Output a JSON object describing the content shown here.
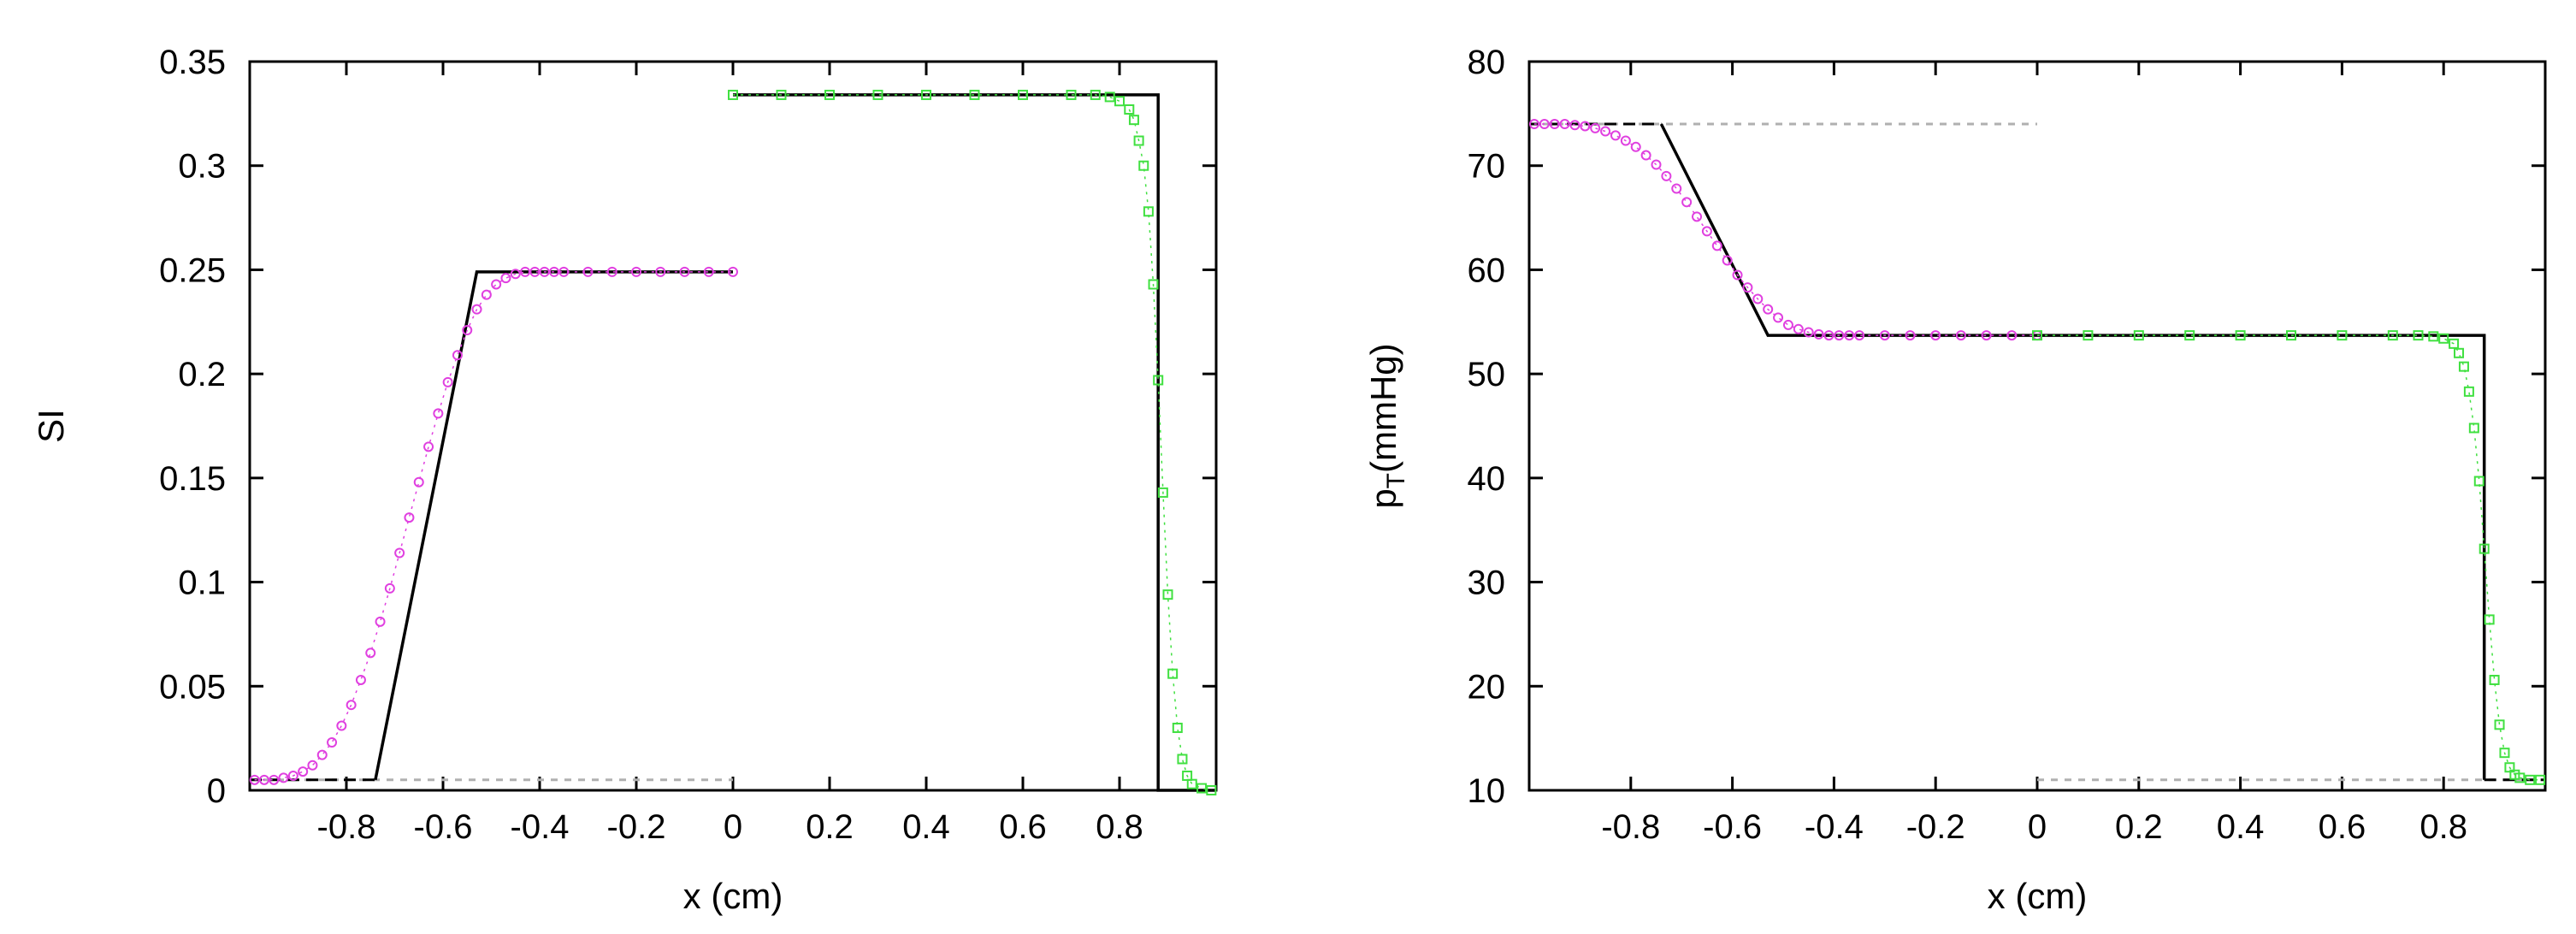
{
  "chart_data": [
    {
      "type": "line",
      "xlabel": "x (cm)",
      "ylabel": "SI",
      "xlim": [
        -1.0,
        1.0
      ],
      "ylim": [
        0,
        0.35
      ],
      "xticks": [
        -0.8,
        -0.6,
        -0.4,
        -0.2,
        0,
        0.2,
        0.4,
        0.6,
        0.8
      ],
      "xtick_labels": [
        "-0.8",
        "-0.6",
        "-0.4",
        "-0.2",
        "0",
        "0.2",
        "0.4",
        "0.6",
        "0.8"
      ],
      "yticks": [
        0,
        0.05,
        0.1,
        0.15,
        0.2,
        0.25,
        0.3,
        0.35
      ],
      "ytick_labels": [
        "0",
        "0.05",
        "0.1",
        "0.15",
        "0.2",
        "0.25",
        "0.3",
        "0.35"
      ],
      "grid": false,
      "series": [
        {
          "style": "dashed-gray",
          "color": "#b0b0b0",
          "x": [
            -1.0,
            0.0
          ],
          "y": [
            0.005,
            0.005
          ]
        },
        {
          "style": "dashed-black",
          "color": "#000000",
          "x": [
            -1.0,
            -0.74
          ],
          "y": [
            0.005,
            0.005
          ]
        },
        {
          "style": "solid-black",
          "color": "#000000",
          "x": [
            -0.74,
            -0.53,
            0.0
          ],
          "y": [
            0.005,
            0.249,
            0.249
          ]
        },
        {
          "style": "solid-black",
          "color": "#000000",
          "x": [
            0.0,
            0.88,
            0.88,
            1.0
          ],
          "y": [
            0.334,
            0.334,
            0.0,
            0.0
          ]
        },
        {
          "style": "circles",
          "color": "#e040e0",
          "x": [
            -0.99,
            -0.97,
            -0.95,
            -0.93,
            -0.91,
            -0.89,
            -0.87,
            -0.85,
            -0.83,
            -0.81,
            -0.79,
            -0.77,
            -0.75,
            -0.73,
            -0.71,
            -0.69,
            -0.67,
            -0.65,
            -0.63,
            -0.61,
            -0.59,
            -0.57,
            -0.55,
            -0.53,
            -0.51,
            -0.49,
            -0.47,
            -0.45,
            -0.43,
            -0.41,
            -0.39,
            -0.37,
            -0.35,
            -0.3,
            -0.25,
            -0.2,
            -0.15,
            -0.1,
            -0.05,
            0.0
          ],
          "y": [
            0.005,
            0.005,
            0.005,
            0.006,
            0.007,
            0.009,
            0.012,
            0.017,
            0.023,
            0.031,
            0.041,
            0.053,
            0.066,
            0.081,
            0.097,
            0.114,
            0.131,
            0.148,
            0.165,
            0.181,
            0.196,
            0.209,
            0.221,
            0.231,
            0.238,
            0.243,
            0.246,
            0.248,
            0.249,
            0.249,
            0.249,
            0.249,
            0.249,
            0.249,
            0.249,
            0.249,
            0.249,
            0.249,
            0.249,
            0.249
          ]
        },
        {
          "style": "squares",
          "color": "#40e040",
          "x": [
            0.0,
            0.1,
            0.2,
            0.3,
            0.4,
            0.5,
            0.6,
            0.7,
            0.75,
            0.78,
            0.8,
            0.82,
            0.83,
            0.84,
            0.85,
            0.86,
            0.87,
            0.88,
            0.89,
            0.9,
            0.91,
            0.92,
            0.93,
            0.94,
            0.95,
            0.97,
            0.99
          ],
          "y": [
            0.334,
            0.334,
            0.334,
            0.334,
            0.334,
            0.334,
            0.334,
            0.334,
            0.334,
            0.333,
            0.331,
            0.327,
            0.322,
            0.312,
            0.3,
            0.278,
            0.243,
            0.197,
            0.143,
            0.094,
            0.056,
            0.03,
            0.015,
            0.007,
            0.003,
            0.001,
            0.0
          ]
        }
      ]
    },
    {
      "type": "line",
      "xlabel": "x (cm)",
      "ylabel_main": "p",
      "ylabel_sub": "T",
      "ylabel_rest": "(mmHg)",
      "xlim": [
        -1.0,
        1.0
      ],
      "ylim": [
        10,
        80
      ],
      "xticks": [
        -0.8,
        -0.6,
        -0.4,
        -0.2,
        0,
        0.2,
        0.4,
        0.6,
        0.8
      ],
      "xtick_labels": [
        "-0.8",
        "-0.6",
        "-0.4",
        "-0.2",
        "0",
        "0.2",
        "0.4",
        "0.6",
        "0.8"
      ],
      "yticks": [
        10,
        20,
        30,
        40,
        50,
        60,
        70,
        80
      ],
      "ytick_labels": [
        "10",
        "20",
        "30",
        "40",
        "50",
        "60",
        "70",
        "80"
      ],
      "grid": false,
      "series": [
        {
          "style": "dashed-gray",
          "color": "#b0b0b0",
          "x": [
            -1.0,
            0.0
          ],
          "y": [
            74,
            74
          ]
        },
        {
          "style": "dashed-gray",
          "color": "#b0b0b0",
          "x": [
            0.0,
            1.0
          ],
          "y": [
            11,
            11
          ]
        },
        {
          "style": "dashed-black",
          "color": "#000000",
          "x": [
            -1.0,
            -0.74
          ],
          "y": [
            74,
            74
          ]
        },
        {
          "style": "dashed-black",
          "color": "#000000",
          "x": [
            0.88,
            1.0
          ],
          "y": [
            11,
            11
          ]
        },
        {
          "style": "solid-black",
          "color": "#000000",
          "x": [
            -0.74,
            -0.53,
            0.88,
            0.88
          ],
          "y": [
            74,
            53.7,
            53.7,
            11
          ]
        },
        {
          "style": "circles",
          "color": "#e040e0",
          "x": [
            -0.99,
            -0.97,
            -0.95,
            -0.93,
            -0.91,
            -0.89,
            -0.87,
            -0.85,
            -0.83,
            -0.81,
            -0.79,
            -0.77,
            -0.75,
            -0.73,
            -0.71,
            -0.69,
            -0.67,
            -0.65,
            -0.63,
            -0.61,
            -0.59,
            -0.57,
            -0.55,
            -0.53,
            -0.51,
            -0.49,
            -0.47,
            -0.45,
            -0.43,
            -0.41,
            -0.39,
            -0.37,
            -0.35,
            -0.3,
            -0.25,
            -0.2,
            -0.15,
            -0.1,
            -0.05,
            0.0
          ],
          "y": [
            74,
            74,
            74,
            74,
            73.9,
            73.8,
            73.6,
            73.3,
            72.9,
            72.4,
            71.8,
            71.0,
            70.1,
            69.0,
            67.8,
            66.5,
            65.1,
            63.7,
            62.3,
            60.9,
            59.5,
            58.3,
            57.2,
            56.2,
            55.4,
            54.7,
            54.3,
            54.0,
            53.8,
            53.7,
            53.7,
            53.7,
            53.7,
            53.7,
            53.7,
            53.7,
            53.7,
            53.7,
            53.7,
            53.7
          ]
        },
        {
          "style": "squares",
          "color": "#40e040",
          "x": [
            0.0,
            0.1,
            0.2,
            0.3,
            0.4,
            0.5,
            0.6,
            0.7,
            0.75,
            0.78,
            0.8,
            0.82,
            0.83,
            0.84,
            0.85,
            0.86,
            0.87,
            0.88,
            0.89,
            0.9,
            0.91,
            0.92,
            0.93,
            0.94,
            0.95,
            0.97,
            0.99
          ],
          "y": [
            53.7,
            53.7,
            53.7,
            53.7,
            53.7,
            53.7,
            53.7,
            53.7,
            53.7,
            53.6,
            53.4,
            52.9,
            52.0,
            50.7,
            48.3,
            44.8,
            39.7,
            33.2,
            26.4,
            20.6,
            16.3,
            13.6,
            12.2,
            11.5,
            11.2,
            11.0,
            11.0
          ]
        }
      ]
    }
  ]
}
